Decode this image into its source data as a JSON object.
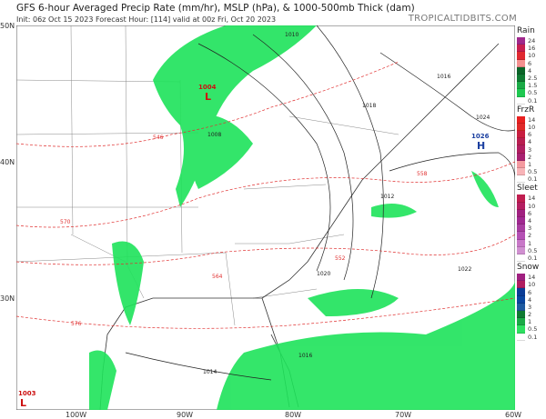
{
  "header": {
    "title": "GFS 6-hour Averaged Precip Rate (mm/hr), MSLP (hPa), & 1000-500mb Thick (dam)",
    "subtitle": "Init: 06z Oct 15 2023   Forecast Hour: [114]   valid at 00z Fri, Oct 20 2023",
    "brand": "TROPICALTIDBITS.COM"
  },
  "axes": {
    "lat": [
      "50N",
      "40N",
      "30N"
    ],
    "lon": [
      "100W",
      "90W",
      "80W",
      "70W",
      "60W"
    ]
  },
  "pressure_centers": [
    {
      "type": "L",
      "value": "1004"
    },
    {
      "type": "H",
      "value": "1026"
    },
    {
      "type": "L",
      "value": "1003"
    }
  ],
  "isobar_labels": [
    "1010",
    "1016",
    "1018",
    "1020",
    "1022",
    "1024",
    "1014",
    "1016",
    "1008",
    "1012"
  ],
  "thickness_labels": [
    "570",
    "564",
    "558",
    "552",
    "546",
    "576"
  ],
  "colors": {
    "precip_green": "#1ee35a",
    "isobar": "#222222",
    "thickness": "#e03030",
    "high": "#1b3fa0",
    "low": "#cc1010"
  },
  "legend": [
    {
      "title": "Rain",
      "levels": [
        "24",
        "16",
        "10",
        "6",
        "4",
        "2.5",
        "1.5",
        "0.5",
        "0.1"
      ],
      "colors": [
        "#a0288c",
        "#b41e6e",
        "#c81e50",
        "#e02830",
        "#f06464",
        "#f49090",
        "#f8e8a0",
        "#0a6428",
        "#0f7a32",
        "#14943c",
        "#1aaa46",
        "#1ec850",
        "#2ee060",
        "#ffffff"
      ]
    },
    {
      "title": "FrzR",
      "levels": [
        "14",
        "10",
        "6",
        "4",
        "3",
        "2",
        "1",
        "0.5",
        "0.1"
      ],
      "colors": [
        "#e82020",
        "#e02828",
        "#d02030",
        "#c81e40",
        "#b81e50",
        "#b01e60",
        "#a82070",
        "#f07080",
        "#f49aa0",
        "#f8b4b8",
        "#ffffff"
      ]
    },
    {
      "title": "Sleet",
      "levels": [
        "14",
        "10",
        "6",
        "4",
        "3",
        "2",
        "1",
        "0.5",
        "0.1"
      ],
      "colors": [
        "#c01e50",
        "#b41e60",
        "#a82070",
        "#a02080",
        "#a02890",
        "#a83ca0",
        "#b450b4",
        "#c064c0",
        "#c878c8",
        "#d090d0",
        "#ffffff"
      ]
    },
    {
      "title": "Snow",
      "levels": [
        "14",
        "10",
        "6",
        "4",
        "3",
        "2",
        "1",
        "0.5",
        "0.1"
      ],
      "colors": [
        "#a02080",
        "#b01e60",
        "#0a3c96",
        "#0a46a0",
        "#1450b4",
        "#1e5aa0",
        "#0f7a32",
        "#1aaa46",
        "#2ee060",
        "#ffffff"
      ]
    }
  ]
}
